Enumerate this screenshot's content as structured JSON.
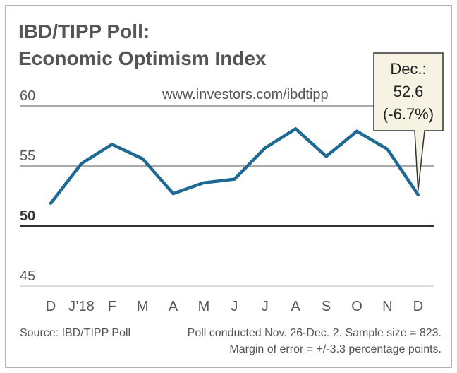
{
  "chart_data": {
    "type": "line",
    "title": [
      "IBD/TIPP Poll:",
      "Economic Optimism Index"
    ],
    "url": "www.investors.com/ibdtipp",
    "categories": [
      "D",
      "J’18",
      "F",
      "M",
      "A",
      "M",
      "J",
      "J",
      "A",
      "S",
      "O",
      "N",
      "D"
    ],
    "series": [
      {
        "name": "Economic Optimism Index",
        "color": "#1f6a94",
        "values": [
          51.9,
          55.2,
          56.8,
          55.6,
          52.7,
          53.6,
          53.9,
          56.5,
          58.1,
          55.8,
          57.9,
          56.4,
          52.6
        ]
      }
    ],
    "ylim": [
      45,
      60
    ],
    "yticks": [
      45,
      50,
      55,
      60
    ],
    "baseline": 50,
    "grid": true,
    "annotation": [
      "Dec.:",
      "52.6",
      "(-6.7%)"
    ],
    "source": "Source: IBD/TIPP Poll",
    "notes": [
      "Poll conducted Nov. 26-Dec. 2. Sample size = 823.",
      "Margin of error = +/-3.3 percentage points."
    ]
  }
}
